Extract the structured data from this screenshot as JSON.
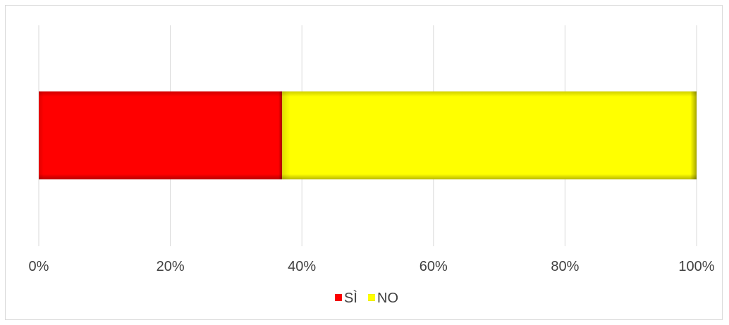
{
  "chart_data": {
    "type": "bar",
    "orientation": "horizontal",
    "stacked": true,
    "percent_stacked": true,
    "title": "",
    "xlabel": "",
    "ylabel": "",
    "xlim": [
      0,
      100
    ],
    "x_ticks": [
      "0%",
      "20%",
      "40%",
      "60%",
      "80%",
      "100%"
    ],
    "grid": "vertical",
    "legend_position": "bottom",
    "categories": [
      ""
    ],
    "series": [
      {
        "name": "SÌ",
        "values": [
          37
        ],
        "color": "#ff0000"
      },
      {
        "name": "NO",
        "values": [
          63
        ],
        "color": "#ffff00"
      }
    ]
  }
}
